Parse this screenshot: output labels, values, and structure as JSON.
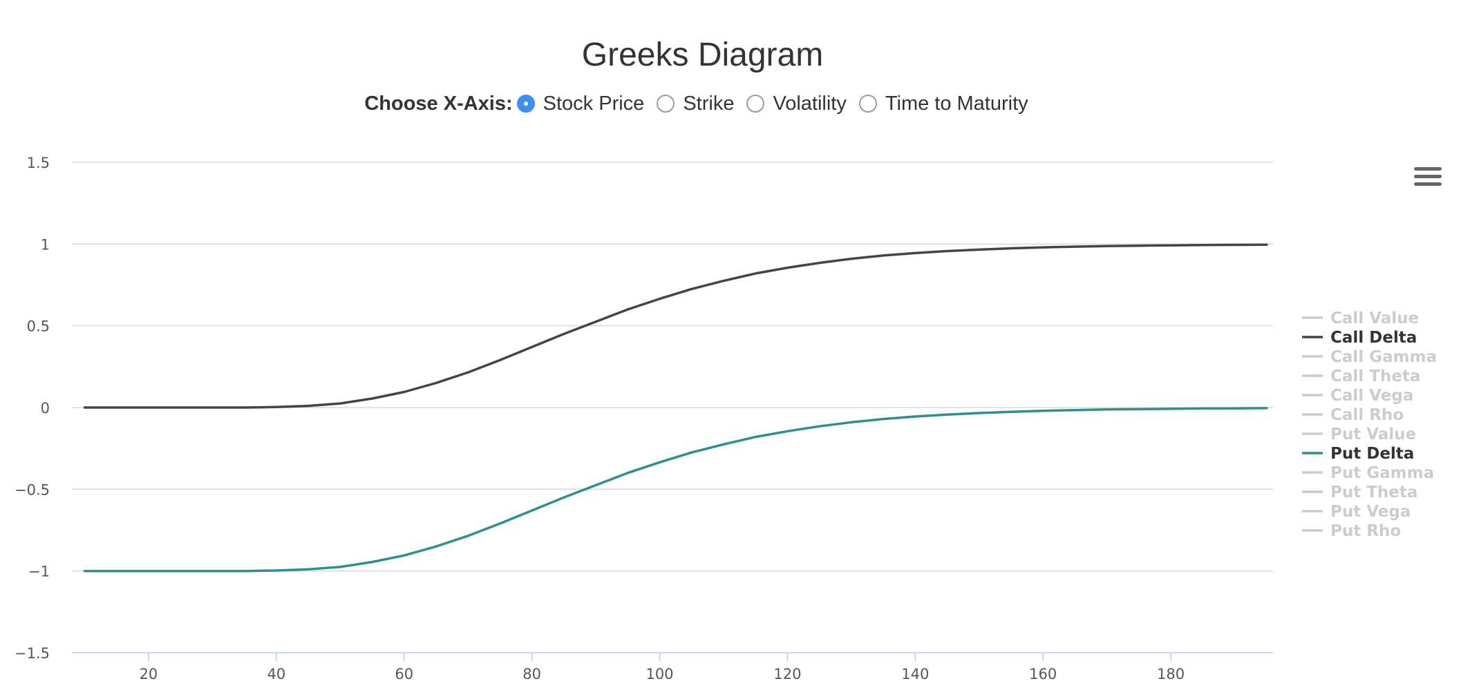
{
  "title": "Greeks Diagram",
  "xaxis_chooser": {
    "label": "Choose X-Axis:",
    "options": [
      {
        "label": "Stock Price",
        "checked": true
      },
      {
        "label": "Strike",
        "checked": false
      },
      {
        "label": "Volatility",
        "checked": false
      },
      {
        "label": "Time to Maturity",
        "checked": false
      }
    ]
  },
  "menu_icon": "hamburger-menu-icon",
  "chart_data": {
    "type": "line",
    "title": "Greeks Diagram",
    "xlabel": "",
    "ylabel": "",
    "xlim": [
      8,
      196
    ],
    "ylim": [
      -1.5,
      1.5
    ],
    "x_ticks": [
      20,
      40,
      60,
      80,
      100,
      120,
      140,
      160,
      180
    ],
    "y_ticks": [
      1.5,
      1,
      0.5,
      0,
      -0.5,
      -1,
      -1.5
    ],
    "y_tick_labels": [
      "1.5",
      "1",
      "0.5",
      "0",
      "−0.5",
      "−1",
      "−1.5"
    ],
    "grid": true,
    "legend_position": "right",
    "x": [
      10,
      15,
      20,
      25,
      30,
      35,
      40,
      45,
      50,
      55,
      60,
      65,
      70,
      75,
      80,
      85,
      90,
      95,
      100,
      105,
      110,
      115,
      120,
      125,
      130,
      135,
      140,
      145,
      150,
      155,
      160,
      165,
      170,
      175,
      180,
      185,
      190,
      195
    ],
    "series": [
      {
        "name": "Call Value",
        "visible": false,
        "color": "#cccccc"
      },
      {
        "name": "Call Delta",
        "visible": true,
        "color": "#434348",
        "values": [
          0.0,
          0.0,
          0.0,
          0.0,
          0.0,
          0.0,
          0.003,
          0.01,
          0.025,
          0.055,
          0.095,
          0.15,
          0.215,
          0.29,
          0.37,
          0.45,
          0.525,
          0.6,
          0.665,
          0.725,
          0.775,
          0.82,
          0.855,
          0.885,
          0.91,
          0.93,
          0.945,
          0.957,
          0.966,
          0.974,
          0.98,
          0.984,
          0.988,
          0.99,
          0.992,
          0.994,
          0.995,
          0.996
        ]
      },
      {
        "name": "Call Gamma",
        "visible": false,
        "color": "#cccccc"
      },
      {
        "name": "Call Theta",
        "visible": false,
        "color": "#cccccc"
      },
      {
        "name": "Call Vega",
        "visible": false,
        "color": "#cccccc"
      },
      {
        "name": "Call Rho",
        "visible": false,
        "color": "#cccccc"
      },
      {
        "name": "Put Value",
        "visible": false,
        "color": "#cccccc"
      },
      {
        "name": "Put Delta",
        "visible": true,
        "color": "#2b908f",
        "values": [
          -1.0,
          -1.0,
          -1.0,
          -1.0,
          -1.0,
          -1.0,
          -0.997,
          -0.99,
          -0.975,
          -0.945,
          -0.905,
          -0.85,
          -0.785,
          -0.71,
          -0.63,
          -0.55,
          -0.475,
          -0.4,
          -0.335,
          -0.275,
          -0.225,
          -0.18,
          -0.145,
          -0.115,
          -0.09,
          -0.07,
          -0.055,
          -0.043,
          -0.034,
          -0.026,
          -0.02,
          -0.016,
          -0.012,
          -0.01,
          -0.008,
          -0.006,
          -0.005,
          -0.004
        ]
      },
      {
        "name": "Put Gamma",
        "visible": false,
        "color": "#cccccc"
      },
      {
        "name": "Put Theta",
        "visible": false,
        "color": "#cccccc"
      },
      {
        "name": "Put Vega",
        "visible": false,
        "color": "#cccccc"
      },
      {
        "name": "Put Rho",
        "visible": false,
        "color": "#cccccc"
      }
    ],
    "legend_visible_text_color": "#333333",
    "legend_hidden_text_color": "#cccccc",
    "grid_color": "#d8d8d8",
    "axis_color": "#ccd6eb"
  }
}
